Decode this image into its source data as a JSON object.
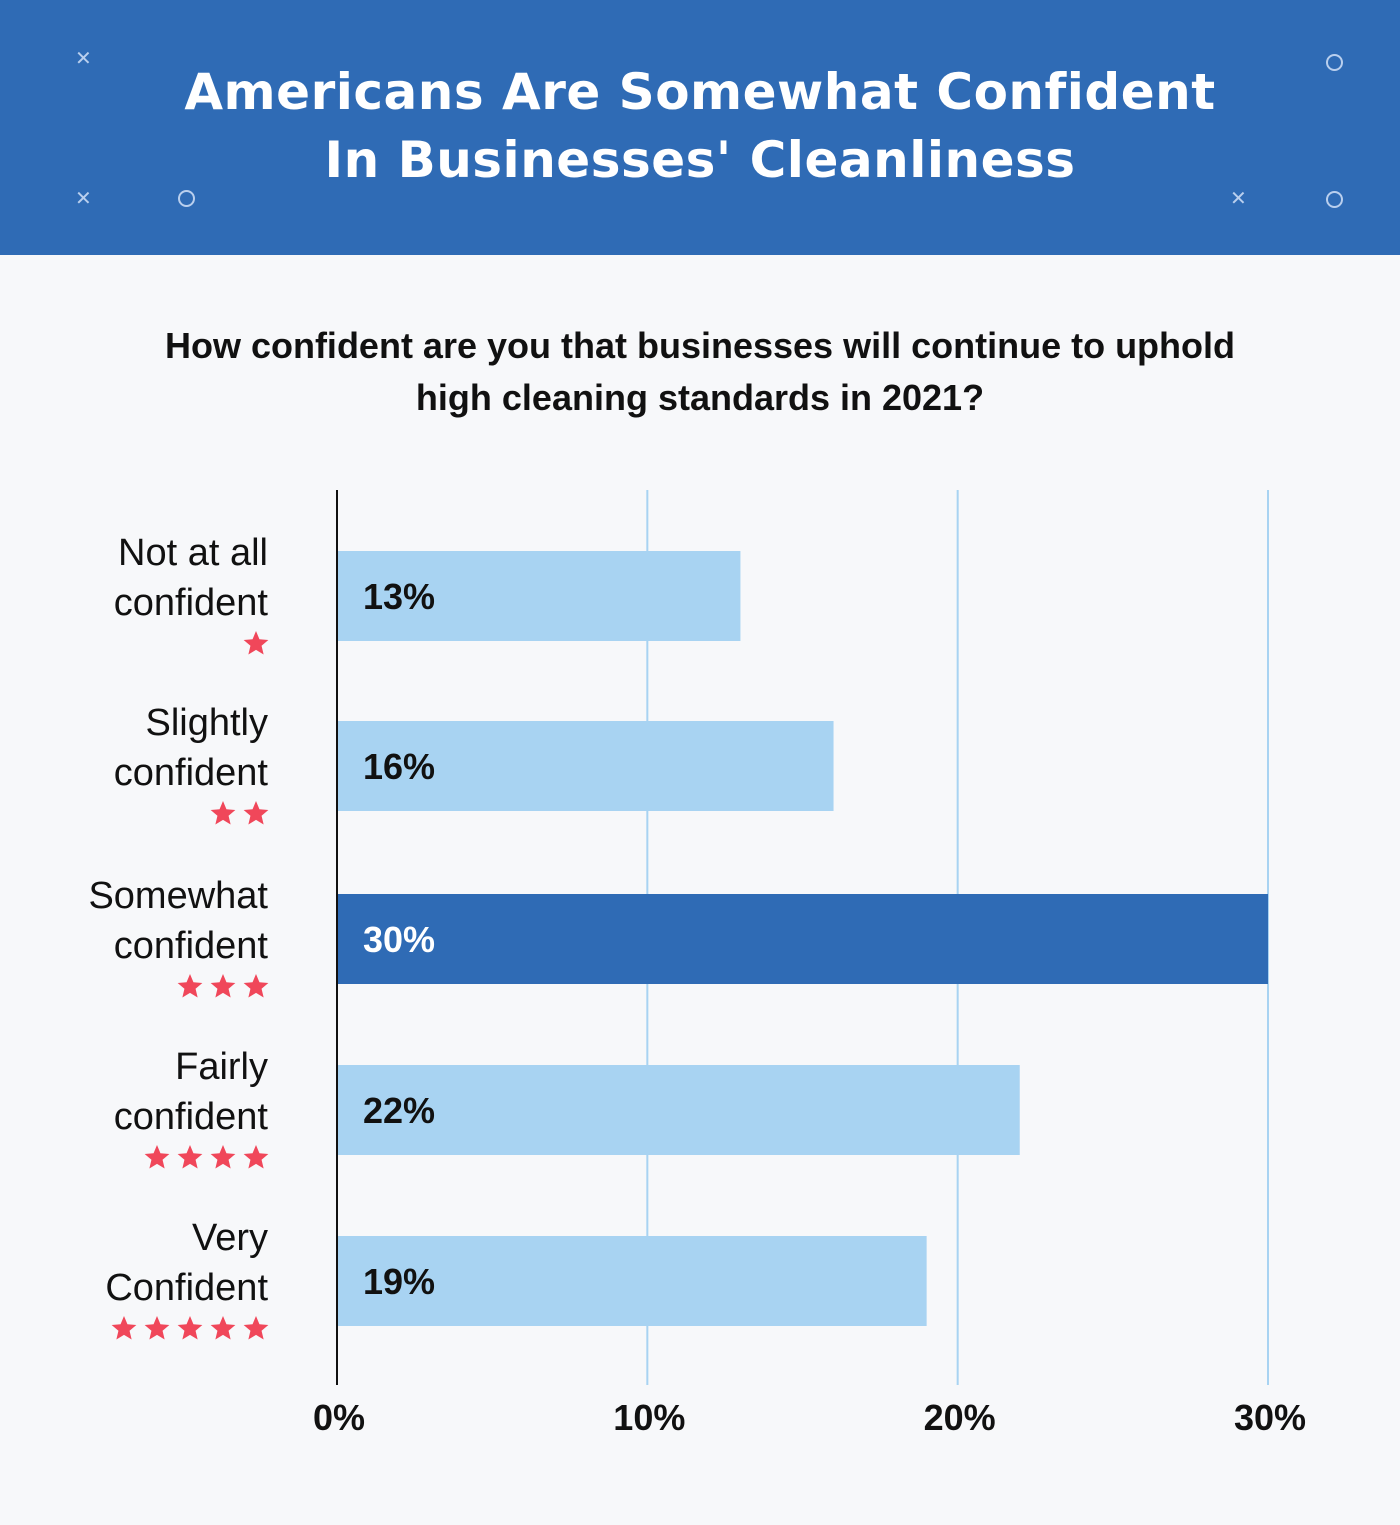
{
  "header": {
    "title_line1": "Americans Are Somewhat Confident",
    "title_line2": "In Businesses' Cleanliness"
  },
  "subtitle_line1": "How confident are you that businesses will continue to uphold",
  "subtitle_line2": "high cleaning standards in 2021?",
  "colors": {
    "header_bg": "#2f6bb5",
    "bar_default": "#a8d3f2",
    "bar_highlight": "#2f6bb5",
    "star": "#f0475a",
    "gridline": "#a8d3f2"
  },
  "chart_data": {
    "type": "bar",
    "orientation": "horizontal",
    "categories": [
      {
        "lines": [
          "Not at all",
          "confident"
        ],
        "stars": 1
      },
      {
        "lines": [
          "Slightly",
          "confident"
        ],
        "stars": 2
      },
      {
        "lines": [
          "Somewhat",
          "confident"
        ],
        "stars": 3
      },
      {
        "lines": [
          "Fairly",
          "confident"
        ],
        "stars": 4
      },
      {
        "lines": [
          "Very",
          "Confident"
        ],
        "stars": 5
      }
    ],
    "values": [
      13,
      16,
      30,
      22,
      19
    ],
    "value_labels": [
      "13%",
      "16%",
      "30%",
      "22%",
      "19%"
    ],
    "highlight_index": 2,
    "xlim": [
      0,
      30
    ],
    "ticks": [
      0,
      10,
      20,
      30
    ],
    "tick_labels": [
      "0%",
      "10%",
      "20%",
      "30%"
    ],
    "grid": true
  }
}
